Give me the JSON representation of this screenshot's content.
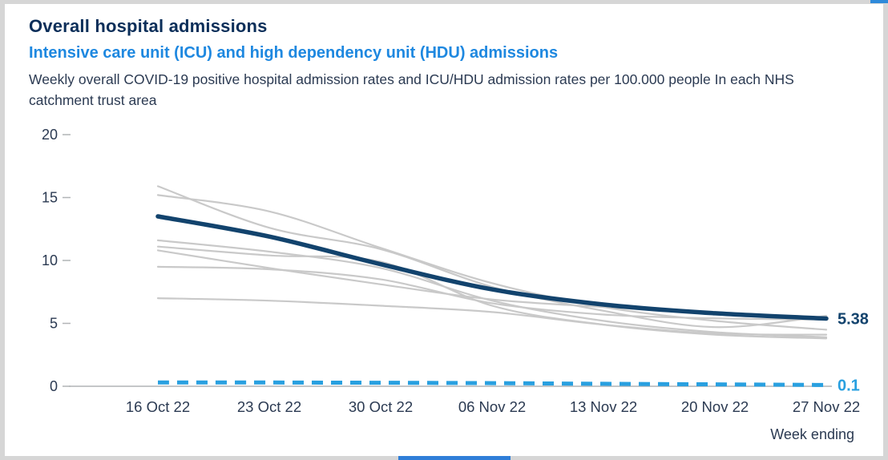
{
  "header": {
    "title": "Overall hospital admissions",
    "subtitle": "Intensive care unit (ICU) and high dependency unit (HDU) admissions",
    "description": "Weekly overall COVID-19 positive hospital admission rates and ICU/HDU admission rates per 100.000 people In each NHS catchment trust area"
  },
  "colors": {
    "title_text": "#0b2e59",
    "subtitle_text": "#1e88e0",
    "body_text": "#2b3a52",
    "axis_line": "#b1b4b6",
    "main_line": "#12436d",
    "trust_line": "#c9c9c9",
    "icu_line": "#29a0e0",
    "background": "#ffffff"
  },
  "chart_data": {
    "type": "line",
    "title": "Overall hospital admissions",
    "subtitle": "Intensive care unit (ICU) and high dependency unit (HDU) admissions",
    "xlabel": "Week ending",
    "ylabel": "",
    "ylim": [
      0,
      20
    ],
    "yticks": [
      0,
      5,
      10,
      15,
      20
    ],
    "grid": false,
    "legend": "none",
    "x_categories": [
      "16 Oct 22",
      "23 Oct 22",
      "30 Oct 22",
      "06 Nov 22",
      "13 Nov 22",
      "20 Nov 22",
      "27 Nov 22"
    ],
    "series": [
      {
        "name": "trust-area-1",
        "role": "background",
        "color": "#c9c9c9",
        "values": [
          15.9,
          12.6,
          10.9,
          7.9,
          6.0,
          4.7,
          5.6
        ]
      },
      {
        "name": "trust-area-2",
        "role": "background",
        "color": "#c9c9c9",
        "values": [
          15.2,
          13.9,
          11.0,
          8.2,
          6.3,
          5.2,
          4.5
        ]
      },
      {
        "name": "trust-area-3",
        "role": "background",
        "color": "#c9c9c9",
        "values": [
          11.6,
          10.7,
          9.4,
          6.8,
          5.2,
          4.3,
          3.9
        ]
      },
      {
        "name": "trust-area-4",
        "role": "background",
        "color": "#c9c9c9",
        "values": [
          11.1,
          10.4,
          9.9,
          6.4,
          4.9,
          4.1,
          3.8
        ]
      },
      {
        "name": "trust-area-5",
        "role": "background",
        "color": "#c9c9c9",
        "values": [
          10.8,
          9.4,
          8.1,
          6.9,
          6.3,
          5.8,
          5.5
        ]
      },
      {
        "name": "trust-area-6",
        "role": "background",
        "color": "#c9c9c9",
        "values": [
          9.5,
          9.3,
          8.5,
          6.6,
          5.7,
          5.4,
          5.3
        ]
      },
      {
        "name": "trust-area-7",
        "role": "background",
        "color": "#c9c9c9",
        "values": [
          7.0,
          6.8,
          6.4,
          5.9,
          4.9,
          4.2,
          4.1
        ]
      },
      {
        "name": "overall-admissions",
        "role": "main",
        "color": "#12436d",
        "values": [
          13.5,
          11.9,
          9.7,
          7.7,
          6.5,
          5.8,
          5.38
        ],
        "end_label": "5.38"
      },
      {
        "name": "icu-hdu-admissions",
        "role": "dashed",
        "color": "#29a0e0",
        "values": [
          0.3,
          0.3,
          0.28,
          0.25,
          0.2,
          0.15,
          0.1
        ],
        "end_label": "0.1"
      }
    ]
  }
}
